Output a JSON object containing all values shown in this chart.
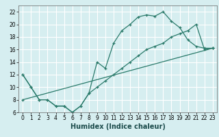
{
  "xlabel": "Humidex (Indice chaleur)",
  "bg_color": "#d6eef0",
  "grid_color": "#ffffff",
  "line_color": "#2a7a6a",
  "xlim": [
    -0.5,
    23.5
  ],
  "ylim": [
    6,
    23
  ],
  "xticks": [
    0,
    1,
    2,
    3,
    4,
    5,
    6,
    7,
    8,
    9,
    10,
    11,
    12,
    13,
    14,
    15,
    16,
    17,
    18,
    19,
    20,
    21,
    22,
    23
  ],
  "yticks": [
    6,
    8,
    10,
    12,
    14,
    16,
    18,
    20,
    22
  ],
  "line1_x": [
    0,
    1,
    2,
    3,
    4,
    5,
    6,
    7,
    8,
    9,
    10,
    11,
    12,
    13,
    14,
    15,
    16,
    17,
    18,
    19,
    20,
    21,
    22,
    23
  ],
  "line1_y": [
    12,
    10,
    8,
    8,
    7,
    7,
    6,
    7,
    9,
    14,
    13,
    17,
    19,
    20,
    21.2,
    21.5,
    21.3,
    22,
    20.5,
    19.5,
    17.5,
    16.5,
    16.2,
    16.2
  ],
  "line2_x": [
    0,
    1,
    2,
    3,
    4,
    5,
    6,
    7,
    8,
    9,
    10,
    11,
    12,
    13,
    14,
    15,
    16,
    17,
    18,
    19,
    20,
    21,
    22,
    23
  ],
  "line2_y": [
    12,
    10,
    8,
    8,
    7,
    7,
    6,
    7,
    9,
    10,
    11,
    12,
    13,
    14,
    15,
    16,
    16.5,
    17,
    18,
    18.5,
    19,
    20,
    16,
    16.2
  ],
  "line3_x": [
    0,
    23
  ],
  "line3_y": [
    8,
    16.2
  ],
  "tick_fontsize": 5.5,
  "xlabel_fontsize": 7
}
